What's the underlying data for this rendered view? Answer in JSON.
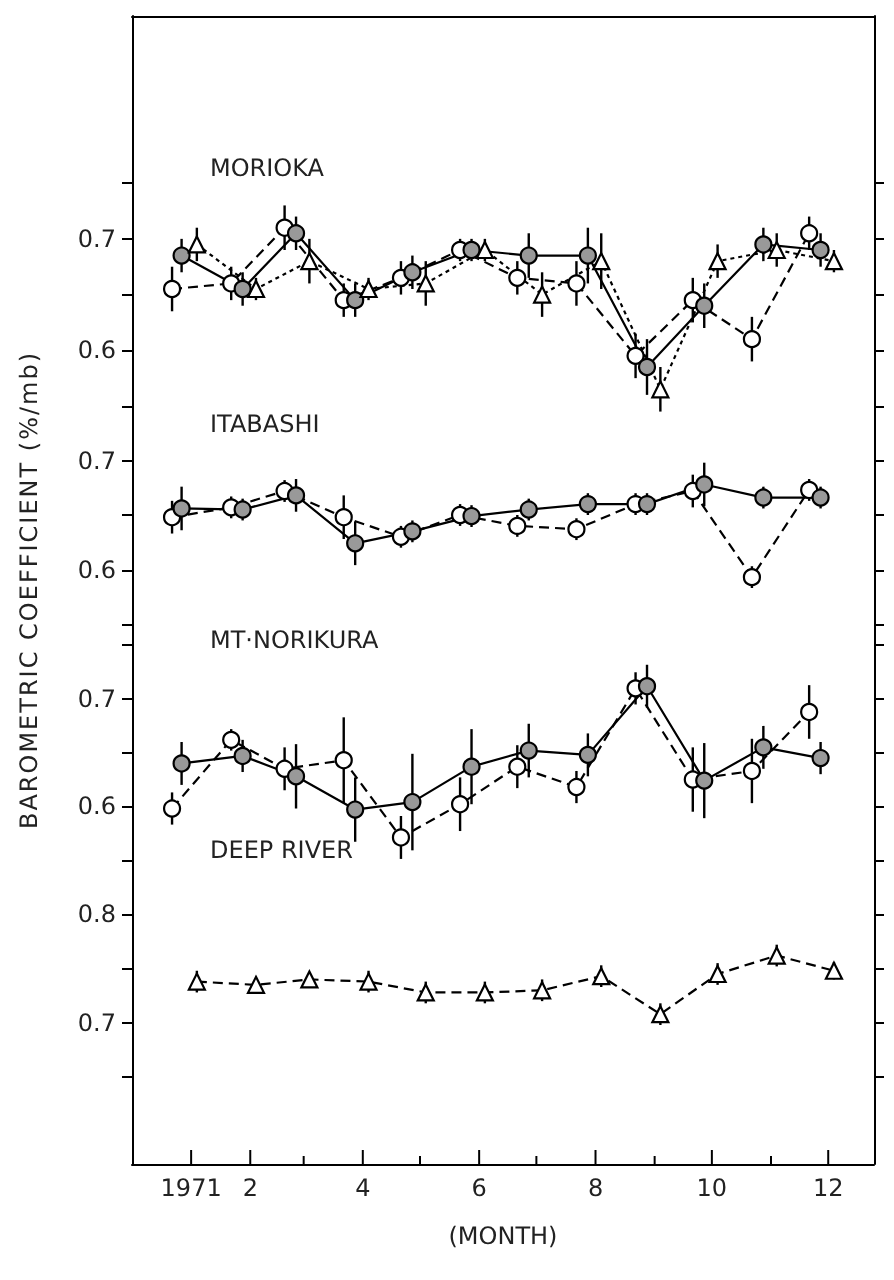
{
  "chart_data": [
    {
      "type": "line",
      "title": "MORIOKA",
      "ylabel": "BAROMETRIC COEFFICIENT (%/mb)",
      "tick_labels": "y",
      "xlim": [
        "1970-12-01",
        "1971-12-25"
      ],
      "ylim": [
        0.55,
        0.9
      ],
      "yticks": [
        {
          "value": 0.55,
          "label": null
        },
        0.6,
        {
          "value": 0.65,
          "label": null
        },
        0.7,
        {
          "value": 0.75,
          "label": null
        }
      ],
      "series": [
        {
          "color": "#ffffff",
          "marker": "circle",
          "line_style": "dashed",
          "x": [
            "1970-12-22",
            "1971-01-22",
            "1971-02-19",
            "1971-03-22",
            "1971-04-21",
            "1971-05-22",
            "1971-06-21",
            "1971-07-22",
            "1971-08-22",
            "1971-09-21",
            "1971-10-22",
            "1971-11-21"
          ],
          "values": [
            0.655,
            0.66,
            0.71,
            0.645,
            0.665,
            0.69,
            0.665,
            0.66,
            0.595,
            0.645,
            0.61,
            0.705
          ],
          "errors": [
            0.02,
            0.015,
            0.02,
            0.015,
            0.015,
            0.01,
            0.015,
            0.02,
            0.02,
            0.02,
            0.02,
            0.015
          ]
        },
        {
          "color": "#999999",
          "marker": "circle",
          "line_style": "solid",
          "x": [
            "1970-12-27",
            "1971-01-28",
            "1971-02-25",
            "1971-03-28",
            "1971-04-27",
            "1971-05-28",
            "1971-06-27",
            "1971-07-28",
            "1971-08-28",
            "1971-09-27",
            "1971-10-28",
            "1971-11-27"
          ],
          "values": [
            0.685,
            0.655,
            0.705,
            0.645,
            0.67,
            0.69,
            0.685,
            0.685,
            0.585,
            0.64,
            0.695,
            0.69
          ],
          "errors": [
            0.015,
            0.015,
            0.015,
            0.015,
            0.015,
            0.01,
            0.02,
            0.025,
            0.025,
            0.02,
            0.015,
            0.015
          ]
        },
        {
          "color": "#ffffff",
          "marker": "triangle",
          "line_style": "dotted",
          "x": [
            "1971-01-04",
            "1971-02-04",
            "1971-03-04",
            "1971-04-04",
            "1971-05-04",
            "1971-06-04",
            "1971-07-04",
            "1971-08-04",
            "1971-09-04",
            "1971-10-04",
            "1971-11-04",
            "1971-12-04"
          ],
          "values": [
            0.695,
            0.655,
            0.68,
            0.655,
            0.66,
            0.69,
            0.65,
            0.68,
            0.565,
            0.68,
            0.69,
            0.68
          ],
          "errors": [
            0.015,
            0.01,
            0.02,
            0.01,
            0.02,
            0.01,
            0.02,
            0.025,
            0.02,
            0.015,
            0.015,
            0.01
          ]
        }
      ]
    },
    {
      "type": "line",
      "title": "ITABASHI",
      "tick_labels": "y",
      "xlim": [
        "1970-12-01",
        "1971-12-25"
      ],
      "ylim": [
        0.55,
        0.75
      ],
      "yticks": [
        {
          "value": 0.55,
          "label": null
        },
        0.6,
        {
          "value": 0.65,
          "label": null
        },
        0.7,
        {
          "value": 0.75,
          "label": null
        }
      ],
      "series": [
        {
          "color": "#ffffff",
          "marker": "circle",
          "line_style": "dashed",
          "x": [
            "1970-12-22",
            "1971-01-22",
            "1971-02-19",
            "1971-03-22",
            "1971-04-21",
            "1971-05-22",
            "1971-06-21",
            "1971-07-22",
            "1971-08-22",
            "1971-09-21",
            "1971-10-22",
            "1971-11-21"
          ],
          "values": [
            0.648,
            0.657,
            0.672,
            0.648,
            0.63,
            0.65,
            0.64,
            0.637,
            0.66,
            0.672,
            0.593,
            0.673
          ],
          "errors": [
            0.015,
            0.01,
            0.01,
            0.02,
            0.01,
            0.01,
            0.01,
            0.01,
            0.01,
            0.015,
            0.01,
            0.01
          ]
        },
        {
          "color": "#999999",
          "marker": "circle",
          "line_style": "solid",
          "x": [
            "1970-12-27",
            "1971-01-28",
            "1971-02-25",
            "1971-03-28",
            "1971-04-27",
            "1971-05-28",
            "1971-06-27",
            "1971-07-28",
            "1971-08-28",
            "1971-09-27",
            "1971-10-28",
            "1971-11-27"
          ],
          "values": [
            0.656,
            0.655,
            0.668,
            0.624,
            0.635,
            0.649,
            0.655,
            0.66,
            0.66,
            0.678,
            0.666,
            0.666
          ],
          "errors": [
            0.02,
            0.01,
            0.015,
            0.02,
            0.01,
            0.01,
            0.01,
            0.01,
            0.01,
            0.02,
            0.01,
            0.01
          ]
        }
      ]
    },
    {
      "type": "line",
      "title": "MT·NORIKURA",
      "tick_labels": "y",
      "xlim": [
        "1970-12-01",
        "1971-12-25"
      ],
      "ylim": [
        0.55,
        0.77
      ],
      "yticks": [
        {
          "value": 0.55,
          "label": null
        },
        0.6,
        {
          "value": 0.65,
          "label": null
        },
        0.7,
        {
          "value": 0.75,
          "label": null
        }
      ],
      "series": [
        {
          "color": "#ffffff",
          "marker": "circle",
          "line_style": "dashed",
          "x": [
            "1970-12-22",
            "1971-01-22",
            "1971-02-19",
            "1971-03-22",
            "1971-04-21",
            "1971-05-22",
            "1971-06-21",
            "1971-07-22",
            "1971-08-22",
            "1971-09-21",
            "1971-10-22",
            "1971-11-21"
          ],
          "values": [
            0.598,
            0.662,
            0.635,
            0.643,
            0.571,
            0.602,
            0.637,
            0.618,
            0.71,
            0.625,
            0.633,
            0.688
          ],
          "errors": [
            0.015,
            0.01,
            0.02,
            0.04,
            0.02,
            0.025,
            0.02,
            0.015,
            0.015,
            0.03,
            0.03,
            0.025
          ]
        },
        {
          "color": "#999999",
          "marker": "circle",
          "line_style": "solid",
          "x": [
            "1970-12-27",
            "1971-01-28",
            "1971-02-25",
            "1971-03-28",
            "1971-04-27",
            "1971-05-28",
            "1971-06-27",
            "1971-07-28",
            "1971-08-28",
            "1971-09-27",
            "1971-10-28",
            "1971-11-27"
          ],
          "values": [
            0.64,
            0.647,
            0.628,
            0.597,
            0.604,
            0.637,
            0.652,
            0.648,
            0.712,
            0.624,
            0.655,
            0.645
          ],
          "errors": [
            0.02,
            0.015,
            0.03,
            0.03,
            0.045,
            0.035,
            0.025,
            0.02,
            0.02,
            0.035,
            0.02,
            0.015
          ]
        }
      ]
    },
    {
      "type": "line",
      "title": "DEEP RIVER",
      "xlabel": "(MONTH)",
      "xlim": [
        "1970-12-01",
        "1971-12-25"
      ],
      "xticks": [
        {
          "value": "1971-01",
          "label": "1971"
        },
        {
          "value": "1971-02",
          "label": "2"
        },
        {
          "value": "1971-03",
          "label": null
        },
        {
          "value": "1971-04",
          "label": "4"
        },
        {
          "value": "1971-05",
          "label": null
        },
        {
          "value": "1971-06",
          "label": "6"
        },
        {
          "value": "1971-07",
          "label": null
        },
        {
          "value": "1971-08",
          "label": "8"
        },
        {
          "value": "1971-09",
          "label": null
        },
        {
          "value": "1971-10",
          "label": "10"
        },
        {
          "value": "1971-11",
          "label": null
        },
        {
          "value": "1971-12",
          "label": "12"
        }
      ],
      "ylim": [
        0.57,
        0.85
      ],
      "yticks": [
        {
          "value": 0.65,
          "label": null
        },
        0.7,
        {
          "value": 0.75,
          "label": null
        },
        0.8
      ],
      "series": [
        {
          "color": "#ffffff",
          "marker": "triangle",
          "line_style": "dashed",
          "x": [
            "1971-01-04",
            "1971-02-04",
            "1971-03-04",
            "1971-04-04",
            "1971-05-04",
            "1971-06-04",
            "1971-07-04",
            "1971-08-04",
            "1971-09-04",
            "1971-10-04",
            "1971-11-04",
            "1971-12-04"
          ],
          "values": [
            0.738,
            0.735,
            0.74,
            0.738,
            0.728,
            0.728,
            0.73,
            0.743,
            0.708,
            0.745,
            0.762,
            0.748
          ],
          "errors": [
            0.01,
            0.005,
            0.005,
            0.01,
            0.01,
            0.01,
            0.01,
            0.01,
            0.01,
            0.01,
            0.01,
            0.008
          ]
        }
      ]
    }
  ]
}
